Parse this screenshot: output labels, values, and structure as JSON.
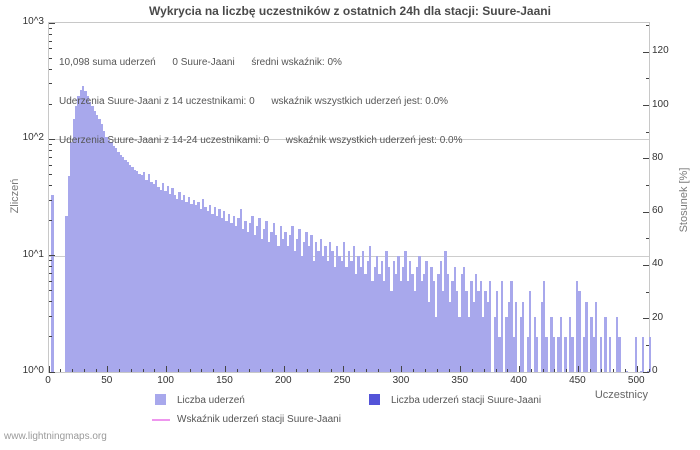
{
  "title": "Wykrycia na liczbę uczestników z ostatnich 24h dla stacji: Suure-Jaani",
  "annotations": [
    "10,098 suma uderzeń      0 Suure-Jaani      średni wskaźnik: 0%",
    "Uderzenia Suure-Jaani z 14 uczestnikami: 0      wskaźnik wszystkich uderzeń jest: 0.0%",
    "Uderzenia Suure-Jaani z 14-24 uczestnikami: 0      wskaźnik wszystkich uderzeń jest: 0.0%"
  ],
  "footer": "www.lightningmaps.org",
  "colors": {
    "bars": "#a8a8ec",
    "station_bars": "#5454d8",
    "ratio_line": "#ee96ee",
    "grid": "#cdcdcd",
    "plot_border": "#c8c8c8"
  },
  "axes": {
    "x": {
      "label": "Uczestnicy",
      "major_ticks": [
        0,
        50,
        100,
        150,
        200,
        250,
        300,
        350,
        400,
        450,
        500
      ],
      "minor_step": 10,
      "max": 510
    },
    "left": {
      "label": "Zliczeń",
      "tick_labels": [
        "10^0",
        "10^1",
        "10^2",
        "10^3"
      ],
      "decades": 3
    },
    "right": {
      "label": "Stosunek [%]",
      "major_ticks": [
        0,
        20,
        40,
        60,
        80,
        100,
        120
      ],
      "minor_ticks": [
        10,
        30,
        50,
        70,
        90,
        110,
        130
      ],
      "max": 131
    }
  },
  "legend": {
    "items": [
      {
        "label": "Liczba uderzeń",
        "swatch": "light-square"
      },
      {
        "label": "Liczba uderzeń stacji Suure-Jaani",
        "swatch": "dark-square"
      },
      {
        "label": "Wskaźnik uderzeń stacji Suure-Jaani",
        "swatch": "pink-line"
      }
    ]
  },
  "chart_data": {
    "type": "bar",
    "title": "Wykrycia na liczbę uczestników z ostatnich 24h dla stacji: Suure-Jaani",
    "xlabel": "Uczestnicy",
    "ylabel": "Zliczeń",
    "y2label": "Stosunek [%]",
    "yscale": "log",
    "ylim": [
      1,
      1000
    ],
    "y2lim": [
      0,
      131
    ],
    "xlim": [
      0,
      510
    ],
    "grid": "horizontal-decades",
    "legend_position": "bottom",
    "total_strikes": "10,098",
    "station_strikes": 0,
    "mean_ratio_percent": 0,
    "x_start": 0,
    "x_step": 2,
    "series": [
      {
        "name": "Liczba uderzeń",
        "color": "#a8a8ec",
        "values": [
          0,
          33,
          0,
          0,
          0,
          0,
          0,
          22,
          48,
          95,
          150,
          195,
          235,
          265,
          285,
          262,
          238,
          210,
          192,
          175,
          162,
          150,
          135,
          118,
          105,
          98,
          94,
          88,
          84,
          78,
          74,
          70,
          67,
          64,
          60,
          58,
          55,
          53,
          50,
          49,
          52,
          45,
          50,
          43,
          41,
          45,
          39,
          37,
          42,
          36,
          40,
          34,
          38,
          33,
          31,
          35,
          30,
          33,
          29,
          32,
          28,
          30,
          27,
          29,
          25,
          31,
          26,
          24,
          27,
          23,
          26,
          22,
          25,
          21,
          24,
          20,
          23,
          19,
          22,
          18,
          21,
          25,
          17,
          20,
          16,
          19,
          22,
          15,
          18,
          21,
          14,
          17,
          20,
          13,
          16,
          19,
          15,
          12,
          18,
          14,
          16,
          12,
          15,
          18,
          11,
          14,
          17,
          10,
          13,
          16,
          12,
          15,
          9,
          13,
          11,
          14,
          10,
          12,
          9,
          13,
          11,
          8,
          12,
          10,
          9,
          13,
          8,
          11,
          9,
          12,
          7,
          10,
          8,
          11,
          7,
          9,
          12,
          6,
          8,
          10,
          7,
          9,
          6,
          11,
          8,
          5,
          9,
          7,
          10,
          6,
          8,
          11,
          6,
          9,
          7,
          5,
          8,
          10,
          6,
          7,
          9,
          4,
          8,
          6,
          3,
          7,
          9,
          5,
          11,
          7,
          4,
          6,
          8,
          5,
          3,
          7,
          8,
          5,
          3,
          6,
          4,
          7,
          5,
          6,
          3,
          5,
          4,
          6,
          0,
          3,
          5,
          2,
          6,
          0,
          3,
          4,
          6,
          2,
          4,
          0,
          3,
          4,
          0,
          2,
          5,
          0,
          3,
          2,
          0,
          4,
          6,
          2,
          0,
          3,
          2,
          0,
          2,
          3,
          0,
          2,
          0,
          3,
          2,
          0,
          6,
          5,
          0,
          2,
          4,
          0,
          3,
          2,
          4,
          0,
          2,
          0,
          3,
          0,
          2,
          0,
          0,
          3,
          2,
          0,
          0,
          1,
          0,
          0,
          0,
          2,
          0,
          1,
          2,
          0,
          1,
          2
        ]
      },
      {
        "name": "Liczba uderzeń stacji Suure-Jaani",
        "color": "#5454d8",
        "values_constant": 0,
        "total": 0
      },
      {
        "name": "Wskaźnik uderzeń stacji Suure-Jaani",
        "color": "#ee96ee",
        "values_constant": 0,
        "unit": "%"
      }
    ]
  }
}
